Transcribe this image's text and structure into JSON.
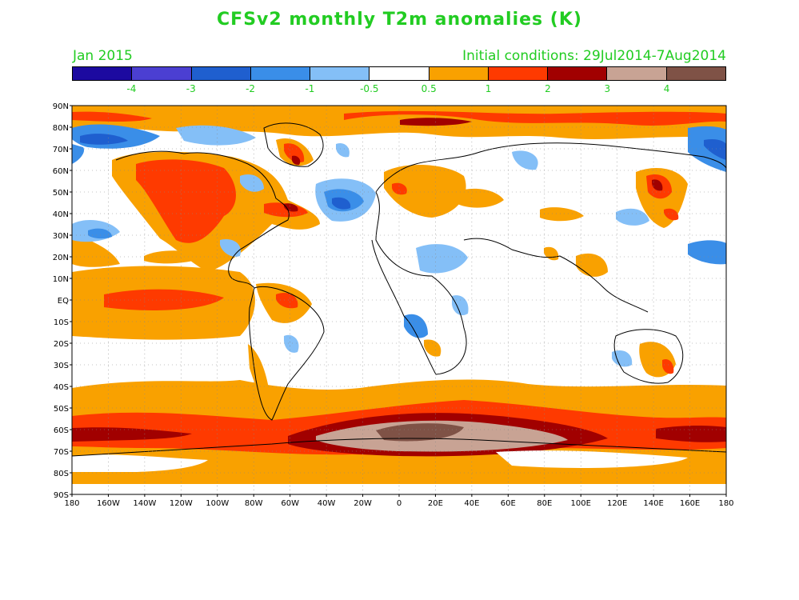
{
  "title": "CFSv2 monthly T2m anomalies (K)",
  "valid_month": "Jan 2015",
  "initial_conditions": "Initial conditions: 29Jul2014-7Aug2014",
  "colorbar": {
    "colors": [
      "#1c0aa0",
      "#4b3fd2",
      "#1f5fcf",
      "#3a8ee8",
      "#84bff7",
      "#ffffff",
      "#f9a100",
      "#fe3a00",
      "#a10000",
      "#c8a394",
      "#7f5246"
    ],
    "labels": [
      "-4",
      "-3",
      "-2",
      "-1",
      "-0.5",
      "0.5",
      "1",
      "2",
      "3",
      "4"
    ]
  },
  "axes": {
    "lat_labels": [
      "90N",
      "80N",
      "70N",
      "60N",
      "50N",
      "40N",
      "30N",
      "20N",
      "10N",
      "EQ",
      "10S",
      "20S",
      "30S",
      "40S",
      "50S",
      "60S",
      "70S",
      "80S",
      "90S"
    ],
    "lon_labels": [
      "180",
      "160W",
      "140W",
      "120W",
      "100W",
      "80W",
      "60W",
      "40W",
      "20W",
      "0",
      "20E",
      "40E",
      "60E",
      "80E",
      "100E",
      "120E",
      "140E",
      "160E",
      "180"
    ]
  }
}
